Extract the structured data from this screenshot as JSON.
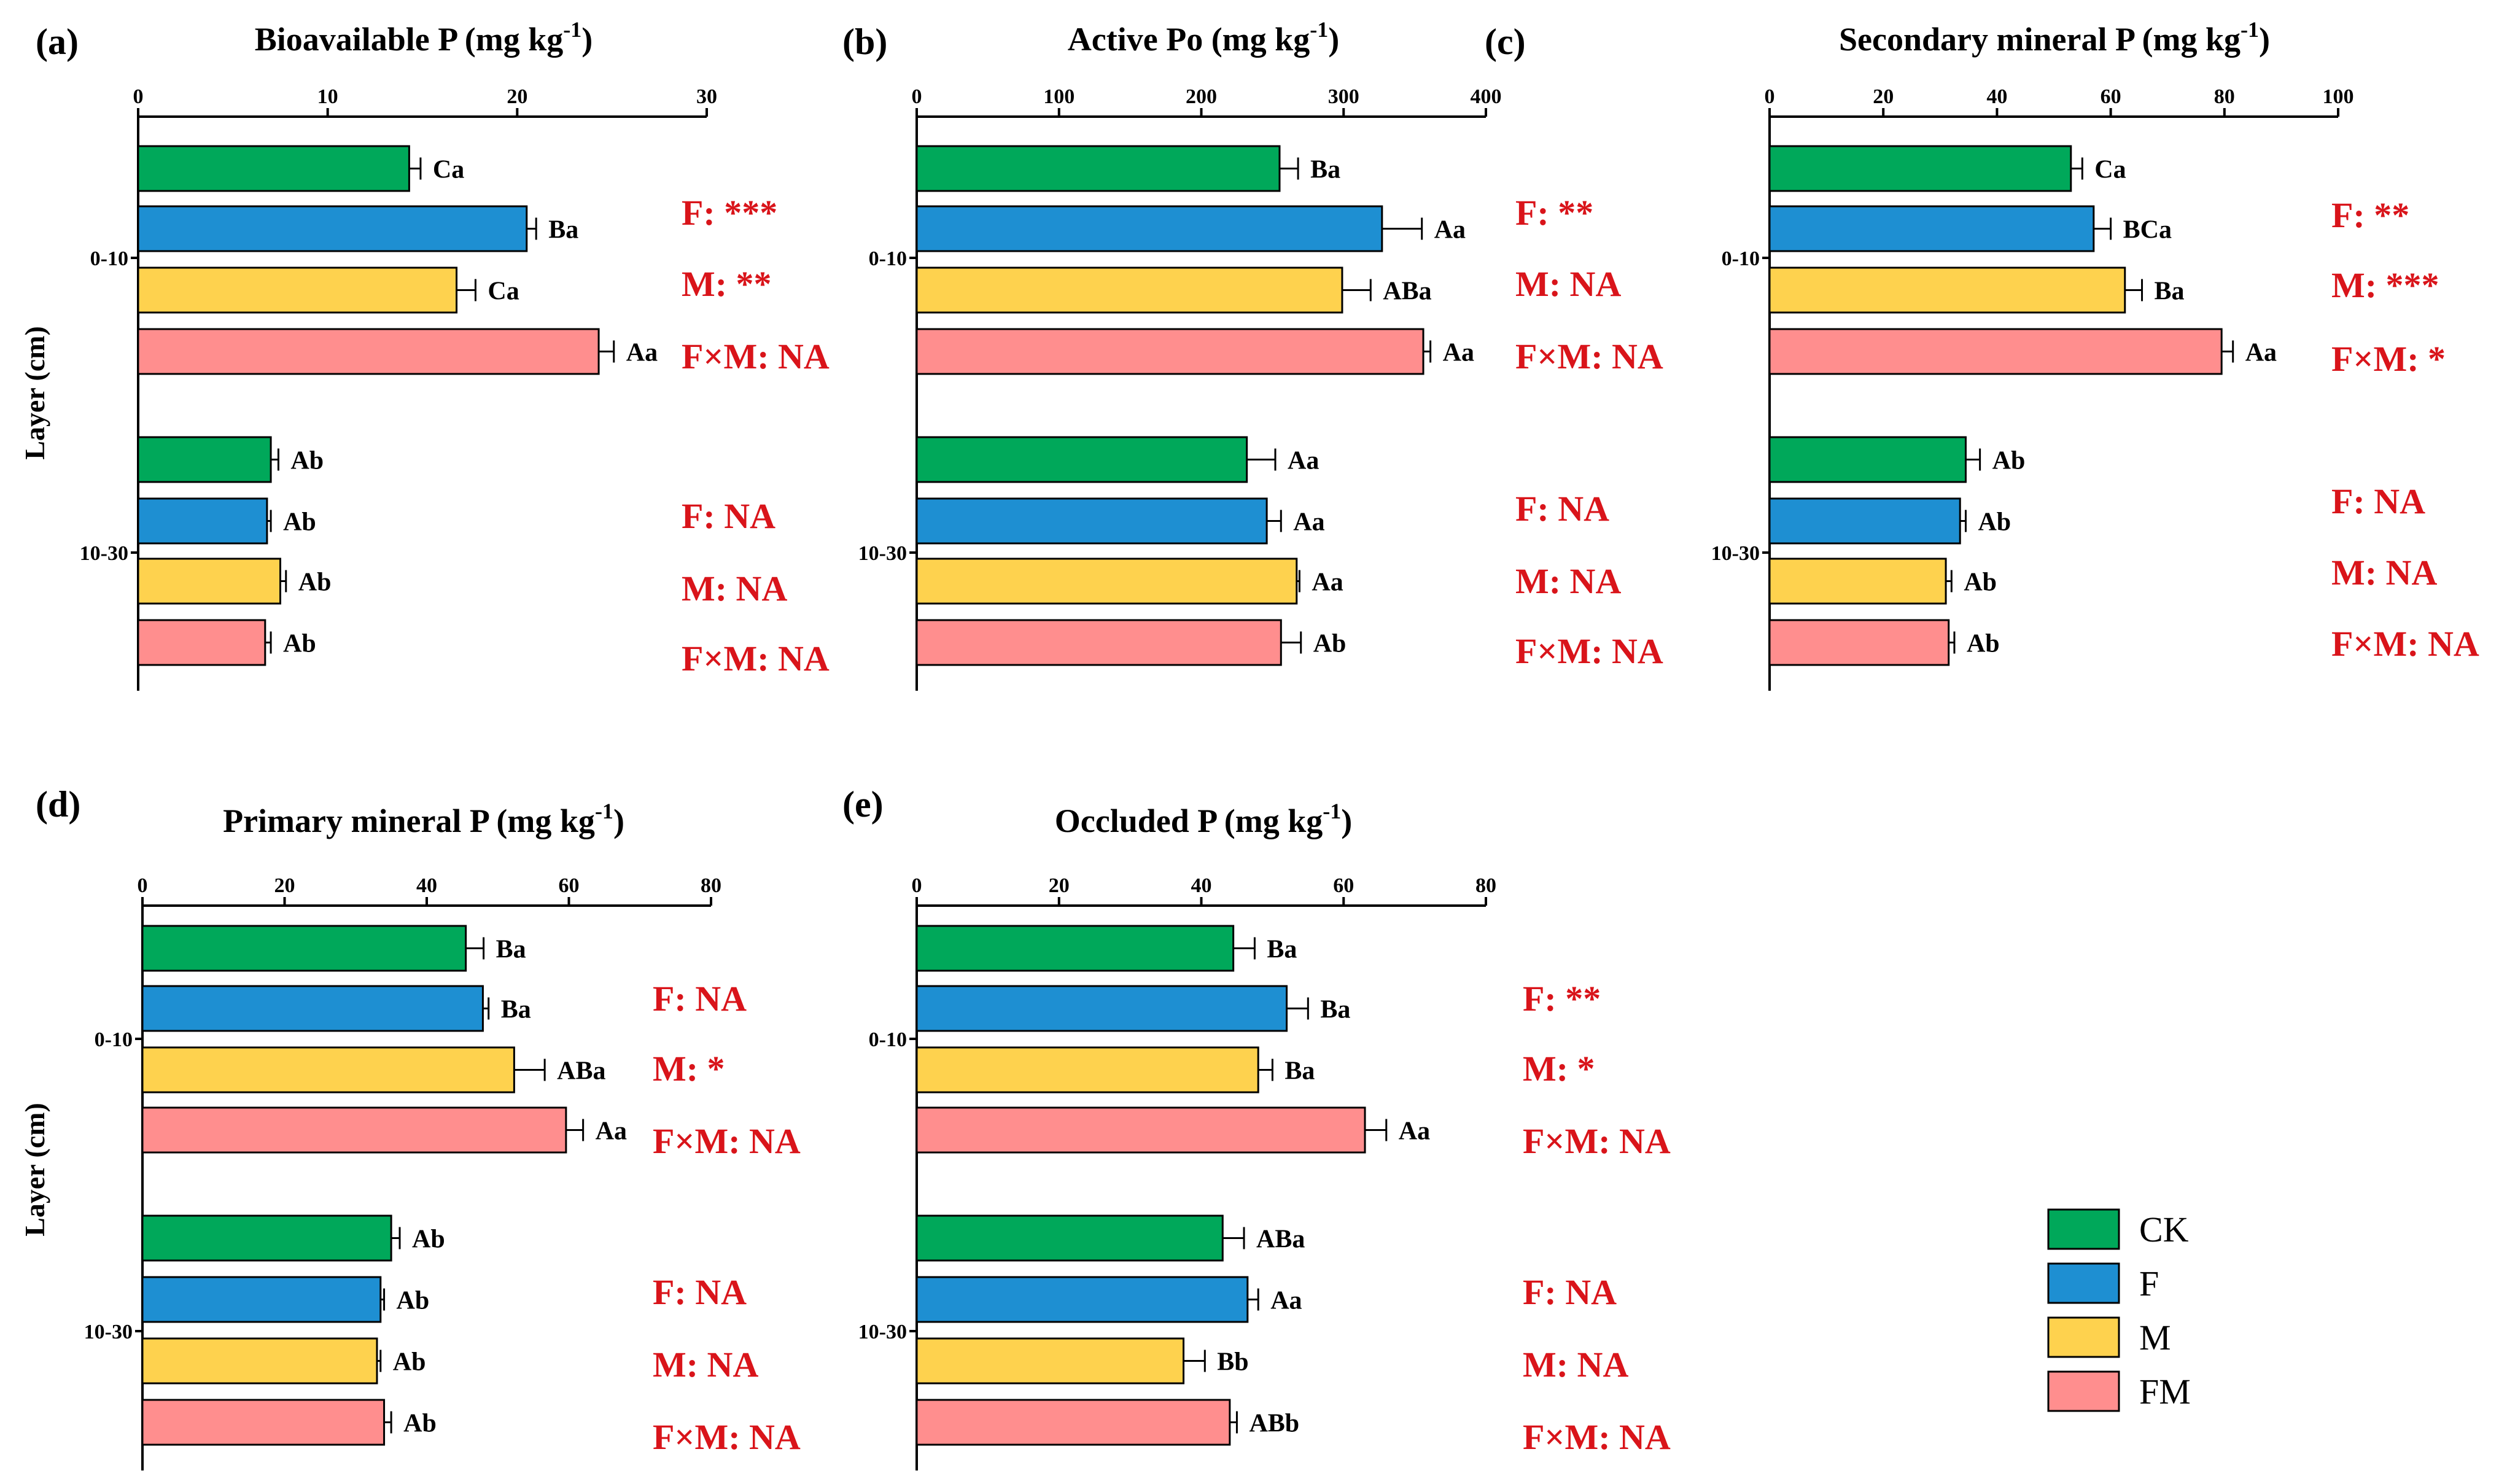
{
  "colors": {
    "CK": "#00a85a",
    "F": "#1e8fd2",
    "M": "#fed24e",
    "FM": "#ff8e8e",
    "stat": "#d9141a"
  },
  "y_axis_label": "Layer (cm)",
  "legend": [
    {
      "name": "CK",
      "color": "#00a85a"
    },
    {
      "name": "F",
      "color": "#1e8fd2"
    },
    {
      "name": "M",
      "color": "#fed24e"
    },
    {
      "name": "FM",
      "color": "#ff8e8e"
    }
  ],
  "chart_data": [
    {
      "panel": "(a)",
      "type": "bar",
      "orientation": "horizontal",
      "title": "Bioavailable P (mg kg",
      "title_sup": "-1",
      "title_end": ")",
      "xlim": [
        0,
        30
      ],
      "ticks": [
        0,
        10,
        20,
        30
      ],
      "layers": [
        {
          "label": "0-10",
          "values": [
            14.3,
            20.5,
            16.8,
            24.3
          ],
          "errors": [
            0.6,
            0.5,
            1.0,
            0.8
          ],
          "labels": [
            "Ca",
            "Ba",
            "Ca",
            "Aa"
          ],
          "stats": [
            "F: ***",
            "M: **",
            "F×M: NA"
          ]
        },
        {
          "label": "10-30",
          "values": [
            7.0,
            6.8,
            7.5,
            6.7
          ],
          "errors": [
            0.4,
            0.2,
            0.3,
            0.3
          ],
          "labels": [
            "Ab",
            "Ab",
            "Ab",
            "Ab"
          ],
          "stats": [
            "F: NA",
            "M: NA",
            "F×M: NA"
          ]
        }
      ]
    },
    {
      "panel": "(b)",
      "type": "bar",
      "orientation": "horizontal",
      "title": "Active Po (mg kg",
      "title_sup": "-1",
      "title_end": ")",
      "xlim": [
        0,
        400
      ],
      "ticks": [
        0,
        100,
        200,
        300,
        400
      ],
      "layers": [
        {
          "label": "0-10",
          "values": [
            255,
            327,
            299,
            356
          ],
          "errors": [
            13,
            28,
            20,
            5
          ],
          "labels": [
            "Ba",
            "Aa",
            "ABa",
            "Aa"
          ],
          "stats": [
            "F: **",
            "M: NA",
            "F×M: NA"
          ]
        },
        {
          "label": "10-30",
          "values": [
            232,
            246,
            267,
            256
          ],
          "errors": [
            20,
            10,
            2,
            14
          ],
          "labels": [
            "Aa",
            "Aa",
            "Aa",
            "Ab"
          ],
          "stats": [
            "F: NA",
            "M: NA",
            "F×M: NA"
          ]
        }
      ]
    },
    {
      "panel": "(c)",
      "type": "bar",
      "orientation": "horizontal",
      "title": "Secondary mineral P (mg kg",
      "title_sup": "-1",
      "title_end": ")",
      "xlim": [
        0,
        100
      ],
      "ticks": [
        0,
        20,
        40,
        60,
        80,
        100
      ],
      "layers": [
        {
          "label": "0-10",
          "values": [
            53,
            57,
            62.5,
            79.5
          ],
          "errors": [
            2.0,
            3.0,
            3.0,
            2.0
          ],
          "labels": [
            "Ca",
            "BCa",
            "Ba",
            "Aa"
          ],
          "stats": [
            "F: **",
            "M: ***",
            "F×M: *"
          ]
        },
        {
          "label": "10-30",
          "values": [
            34.5,
            33.5,
            31.0,
            31.5
          ],
          "errors": [
            2.5,
            1.0,
            1.0,
            1.0
          ],
          "labels": [
            "Ab",
            "Ab",
            "Ab",
            "Ab"
          ],
          "stats": [
            "F: NA",
            "M: NA",
            "F×M: NA"
          ]
        }
      ]
    },
    {
      "panel": "(d)",
      "type": "bar",
      "orientation": "horizontal",
      "title": "Primary mineral P (mg kg",
      "title_sup": "-1",
      "title_end": ")",
      "xlim": [
        0,
        80
      ],
      "ticks": [
        0,
        20,
        40,
        60,
        80
      ],
      "layers": [
        {
          "label": "0-10",
          "values": [
            45.5,
            47.9,
            52.3,
            59.6
          ],
          "errors": [
            2.5,
            0.8,
            4.3,
            2.4
          ],
          "labels": [
            "Ba",
            "Ba",
            "ABa",
            "Aa"
          ],
          "stats": [
            "F: NA",
            "M: *",
            "F×M: NA"
          ]
        },
        {
          "label": "10-30",
          "values": [
            35.0,
            33.5,
            33.0,
            34.0
          ],
          "errors": [
            1.2,
            0.5,
            0.5,
            1.0
          ],
          "labels": [
            "Ab",
            "Ab",
            "Ab",
            "Ab"
          ],
          "stats": [
            "F: NA",
            "M: NA",
            "F×M: NA"
          ]
        }
      ]
    },
    {
      "panel": "(e)",
      "type": "bar",
      "orientation": "horizontal",
      "title": "Occluded P (mg kg",
      "title_sup": "-1",
      "title_end": ")",
      "xlim": [
        0,
        80
      ],
      "ticks": [
        0,
        20,
        40,
        60,
        80
      ],
      "layers": [
        {
          "label": "0-10",
          "values": [
            44.5,
            52.0,
            48.0,
            63.0
          ],
          "errors": [
            3.0,
            3.0,
            2.0,
            3.0
          ],
          "labels": [
            "Ba",
            "Ba",
            "Ba",
            "Aa"
          ],
          "stats": [
            "F: **",
            "M: *",
            "F×M: NA"
          ]
        },
        {
          "label": "10-30",
          "values": [
            43.0,
            46.5,
            37.5,
            44.0
          ],
          "errors": [
            3.0,
            1.5,
            3.0,
            1.0
          ],
          "labels": [
            "ABa",
            "Aa",
            "Bb",
            "ABb"
          ],
          "stats": [
            "F: NA",
            "M: NA",
            "F×M: NA"
          ]
        }
      ]
    }
  ]
}
